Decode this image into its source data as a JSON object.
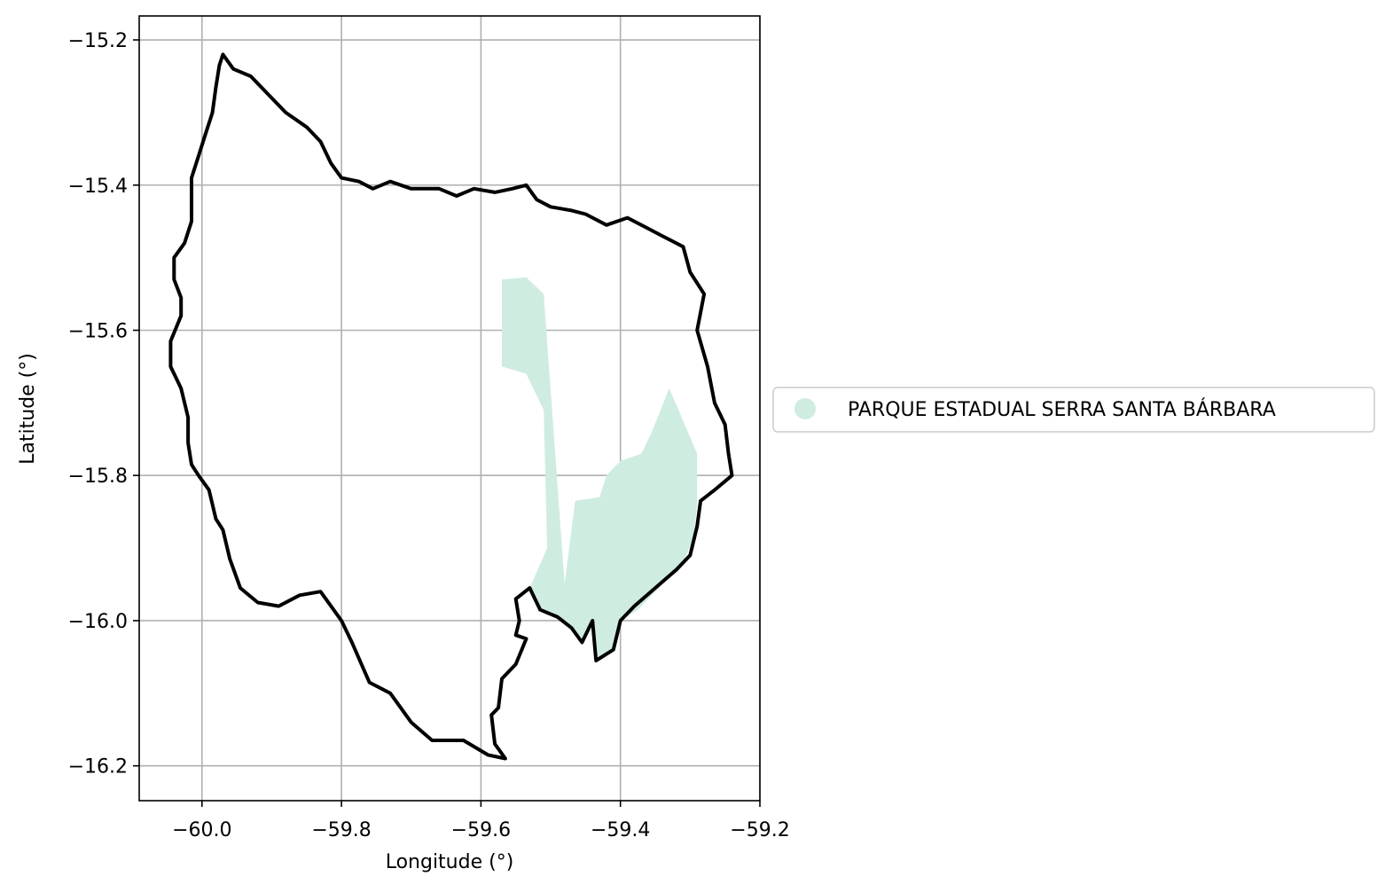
{
  "chart_data": {
    "type": "map",
    "xlabel": "Longitude (°)",
    "ylabel": "Latitude (°)",
    "xlim": [
      -60.09,
      -59.2
    ],
    "ylim": [
      -16.248,
      -15.167
    ],
    "xticks": [
      -60.0,
      -59.8,
      -59.6,
      -59.4,
      -59.2
    ],
    "yticks": [
      -15.2,
      -15.4,
      -15.6,
      -15.8,
      -16.0,
      -16.2
    ],
    "xtick_labels": [
      "−60.0",
      "−59.8",
      "−59.6",
      "−59.4",
      "−59.2"
    ],
    "ytick_labels": [
      "−15.2",
      "−15.4",
      "−15.6",
      "−15.8",
      "−16.0",
      "−16.2"
    ],
    "grid": true,
    "legend_position": "right-outside",
    "legend": [
      {
        "label": "PARQUE ESTADUAL SERRA SANTA BÁRBARA",
        "color": "#cfece0",
        "marker": "circle"
      }
    ],
    "layers": [
      {
        "kind": "boundary",
        "color": "#000000",
        "coordinates": [
          [
            -59.97,
            -15.22
          ],
          [
            -59.955,
            -15.24
          ],
          [
            -59.93,
            -15.25
          ],
          [
            -59.9,
            -15.28
          ],
          [
            -59.88,
            -15.3
          ],
          [
            -59.85,
            -15.32
          ],
          [
            -59.83,
            -15.34
          ],
          [
            -59.815,
            -15.37
          ],
          [
            -59.8,
            -15.39
          ],
          [
            -59.775,
            -15.395
          ],
          [
            -59.755,
            -15.405
          ],
          [
            -59.73,
            -15.395
          ],
          [
            -59.7,
            -15.405
          ],
          [
            -59.66,
            -15.405
          ],
          [
            -59.635,
            -15.415
          ],
          [
            -59.61,
            -15.405
          ],
          [
            -59.58,
            -15.41
          ],
          [
            -59.555,
            -15.405
          ],
          [
            -59.535,
            -15.4
          ],
          [
            -59.52,
            -15.42
          ],
          [
            -59.5,
            -15.43
          ],
          [
            -59.47,
            -15.435
          ],
          [
            -59.45,
            -15.44
          ],
          [
            -59.42,
            -15.455
          ],
          [
            -59.39,
            -15.445
          ],
          [
            -59.36,
            -15.46
          ],
          [
            -59.34,
            -15.47
          ],
          [
            -59.31,
            -15.485
          ],
          [
            -59.3,
            -15.52
          ],
          [
            -59.28,
            -15.55
          ],
          [
            -59.29,
            -15.6
          ],
          [
            -59.275,
            -15.65
          ],
          [
            -59.265,
            -15.7
          ],
          [
            -59.25,
            -15.73
          ],
          [
            -59.245,
            -15.77
          ],
          [
            -59.24,
            -15.8
          ],
          [
            -59.265,
            -15.82
          ],
          [
            -59.285,
            -15.835
          ],
          [
            -59.29,
            -15.87
          ],
          [
            -59.3,
            -15.91
          ],
          [
            -59.32,
            -15.93
          ],
          [
            -59.35,
            -15.955
          ],
          [
            -59.38,
            -15.98
          ],
          [
            -59.4,
            -16.0
          ],
          [
            -59.41,
            -16.04
          ],
          [
            -59.435,
            -16.055
          ],
          [
            -59.44,
            -16.0
          ],
          [
            -59.455,
            -16.03
          ],
          [
            -59.47,
            -16.01
          ],
          [
            -59.49,
            -15.995
          ],
          [
            -59.515,
            -15.985
          ],
          [
            -59.53,
            -15.955
          ],
          [
            -59.55,
            -15.97
          ],
          [
            -59.545,
            -16.0
          ],
          [
            -59.55,
            -16.02
          ],
          [
            -59.535,
            -16.025
          ],
          [
            -59.55,
            -16.06
          ],
          [
            -59.57,
            -16.08
          ],
          [
            -59.575,
            -16.12
          ],
          [
            -59.585,
            -16.13
          ],
          [
            -59.58,
            -16.17
          ],
          [
            -59.565,
            -16.19
          ],
          [
            -59.59,
            -16.185
          ],
          [
            -59.625,
            -16.165
          ],
          [
            -59.67,
            -16.165
          ],
          [
            -59.7,
            -16.14
          ],
          [
            -59.73,
            -16.1
          ],
          [
            -59.76,
            -16.085
          ],
          [
            -59.785,
            -16.03
          ],
          [
            -59.8,
            -16.0
          ],
          [
            -59.815,
            -15.98
          ],
          [
            -59.83,
            -15.96
          ],
          [
            -59.86,
            -15.965
          ],
          [
            -59.89,
            -15.98
          ],
          [
            -59.92,
            -15.975
          ],
          [
            -59.945,
            -15.955
          ],
          [
            -59.96,
            -15.915
          ],
          [
            -59.97,
            -15.875
          ],
          [
            -59.98,
            -15.86
          ],
          [
            -59.99,
            -15.82
          ],
          [
            -60.005,
            -15.8
          ],
          [
            -60.015,
            -15.785
          ],
          [
            -60.02,
            -15.755
          ],
          [
            -60.02,
            -15.72
          ],
          [
            -60.03,
            -15.68
          ],
          [
            -60.045,
            -15.65
          ],
          [
            -60.045,
            -15.615
          ],
          [
            -60.03,
            -15.58
          ],
          [
            -60.03,
            -15.555
          ],
          [
            -60.04,
            -15.53
          ],
          [
            -60.04,
            -15.5
          ],
          [
            -60.025,
            -15.48
          ],
          [
            -60.015,
            -15.45
          ],
          [
            -60.015,
            -15.42
          ],
          [
            -60.015,
            -15.39
          ],
          [
            -60.005,
            -15.36
          ],
          [
            -59.995,
            -15.33
          ],
          [
            -59.985,
            -15.3
          ],
          [
            -59.98,
            -15.265
          ],
          [
            -59.975,
            -15.235
          ],
          [
            -59.97,
            -15.22
          ]
        ]
      },
      {
        "kind": "area",
        "label": "PARQUE ESTADUAL SERRA SANTA BÁRBARA",
        "color": "#cfece0",
        "coordinates": [
          [
            -59.57,
            -15.53
          ],
          [
            -59.535,
            -15.527
          ],
          [
            -59.51,
            -15.55
          ],
          [
            -59.48,
            -15.95
          ],
          [
            -59.465,
            -15.835
          ],
          [
            -59.43,
            -15.83
          ],
          [
            -59.42,
            -15.8
          ],
          [
            -59.4,
            -15.78
          ],
          [
            -59.37,
            -15.77
          ],
          [
            -59.355,
            -15.74
          ],
          [
            -59.33,
            -15.68
          ],
          [
            -59.29,
            -15.77
          ],
          [
            -59.29,
            -15.84
          ],
          [
            -59.295,
            -15.885
          ],
          [
            -59.31,
            -15.92
          ],
          [
            -59.34,
            -15.95
          ],
          [
            -59.375,
            -15.985
          ],
          [
            -59.4,
            -16.0
          ],
          [
            -59.41,
            -16.04
          ],
          [
            -59.435,
            -16.055
          ],
          [
            -59.44,
            -16.0
          ],
          [
            -59.455,
            -16.03
          ],
          [
            -59.47,
            -16.01
          ],
          [
            -59.49,
            -15.995
          ],
          [
            -59.515,
            -15.985
          ],
          [
            -59.53,
            -15.955
          ],
          [
            -59.505,
            -15.9
          ],
          [
            -59.51,
            -15.71
          ],
          [
            -59.535,
            -15.66
          ],
          [
            -59.57,
            -15.65
          ]
        ]
      }
    ]
  }
}
